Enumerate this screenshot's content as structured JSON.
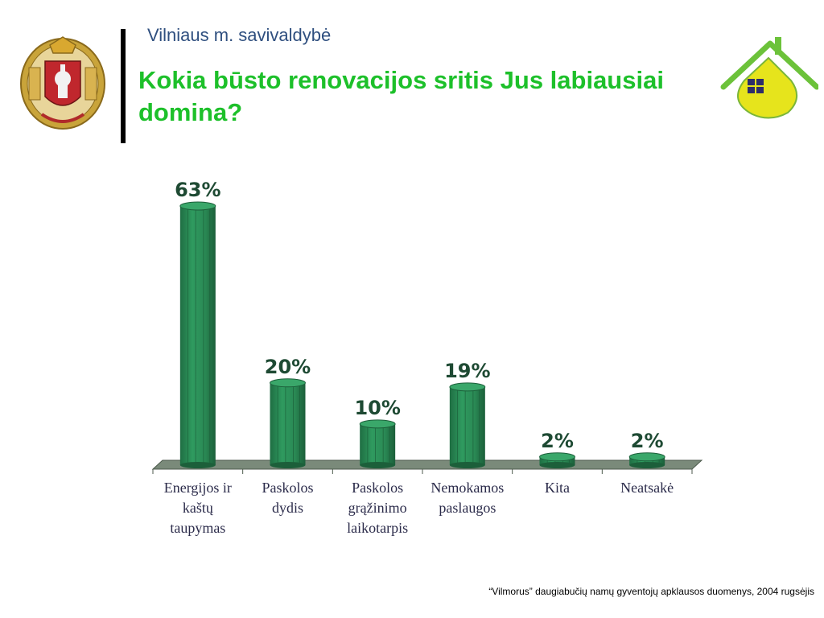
{
  "header": {
    "org_name": "Vilniaus m. savivaldybė",
    "logo_left": "vilnius-coat-of-arms",
    "logo_right": "house-logo"
  },
  "slide": {
    "title": "Kokia būsto renovacijos sritis Jus labiausiai domina?"
  },
  "footer": {
    "source_note": "“Vilmorus” daugiabučių namų gyventojų apklausos duomenys, 2004 rugsėjis"
  },
  "colors": {
    "title": "#1dc02a",
    "org_name": "#2f4f7f",
    "bar": "#2a8a55",
    "bar_top": "#3aa76a",
    "floor": "#7a8a7a",
    "value_label": "#1e4a33"
  },
  "chart_data": {
    "type": "bar",
    "categories": [
      "Energijos ir kaštų taupymas",
      "Paskolos dydis",
      "Paskolos grąžinimo laikotarpis",
      "Nemokamos paslaugos",
      "Kita",
      "Neatsakė"
    ],
    "category_lines": [
      [
        "Energijos ir",
        "kaštų",
        "taupymas"
      ],
      [
        "Paskolos",
        "dydis"
      ],
      [
        "Paskolos",
        "grąžinimo",
        "laikotarpis"
      ],
      [
        "Nemokamos",
        "paslaugos"
      ],
      [
        "Kita"
      ],
      [
        "Neatsakė"
      ]
    ],
    "values": [
      63,
      20,
      10,
      19,
      2,
      2
    ],
    "value_labels": [
      "63%",
      "20%",
      "10%",
      "19%",
      "2%",
      "2%"
    ],
    "ylim": [
      0,
      63
    ],
    "title": "",
    "xlabel": "",
    "ylabel": "",
    "grid": false,
    "legend": "none"
  }
}
